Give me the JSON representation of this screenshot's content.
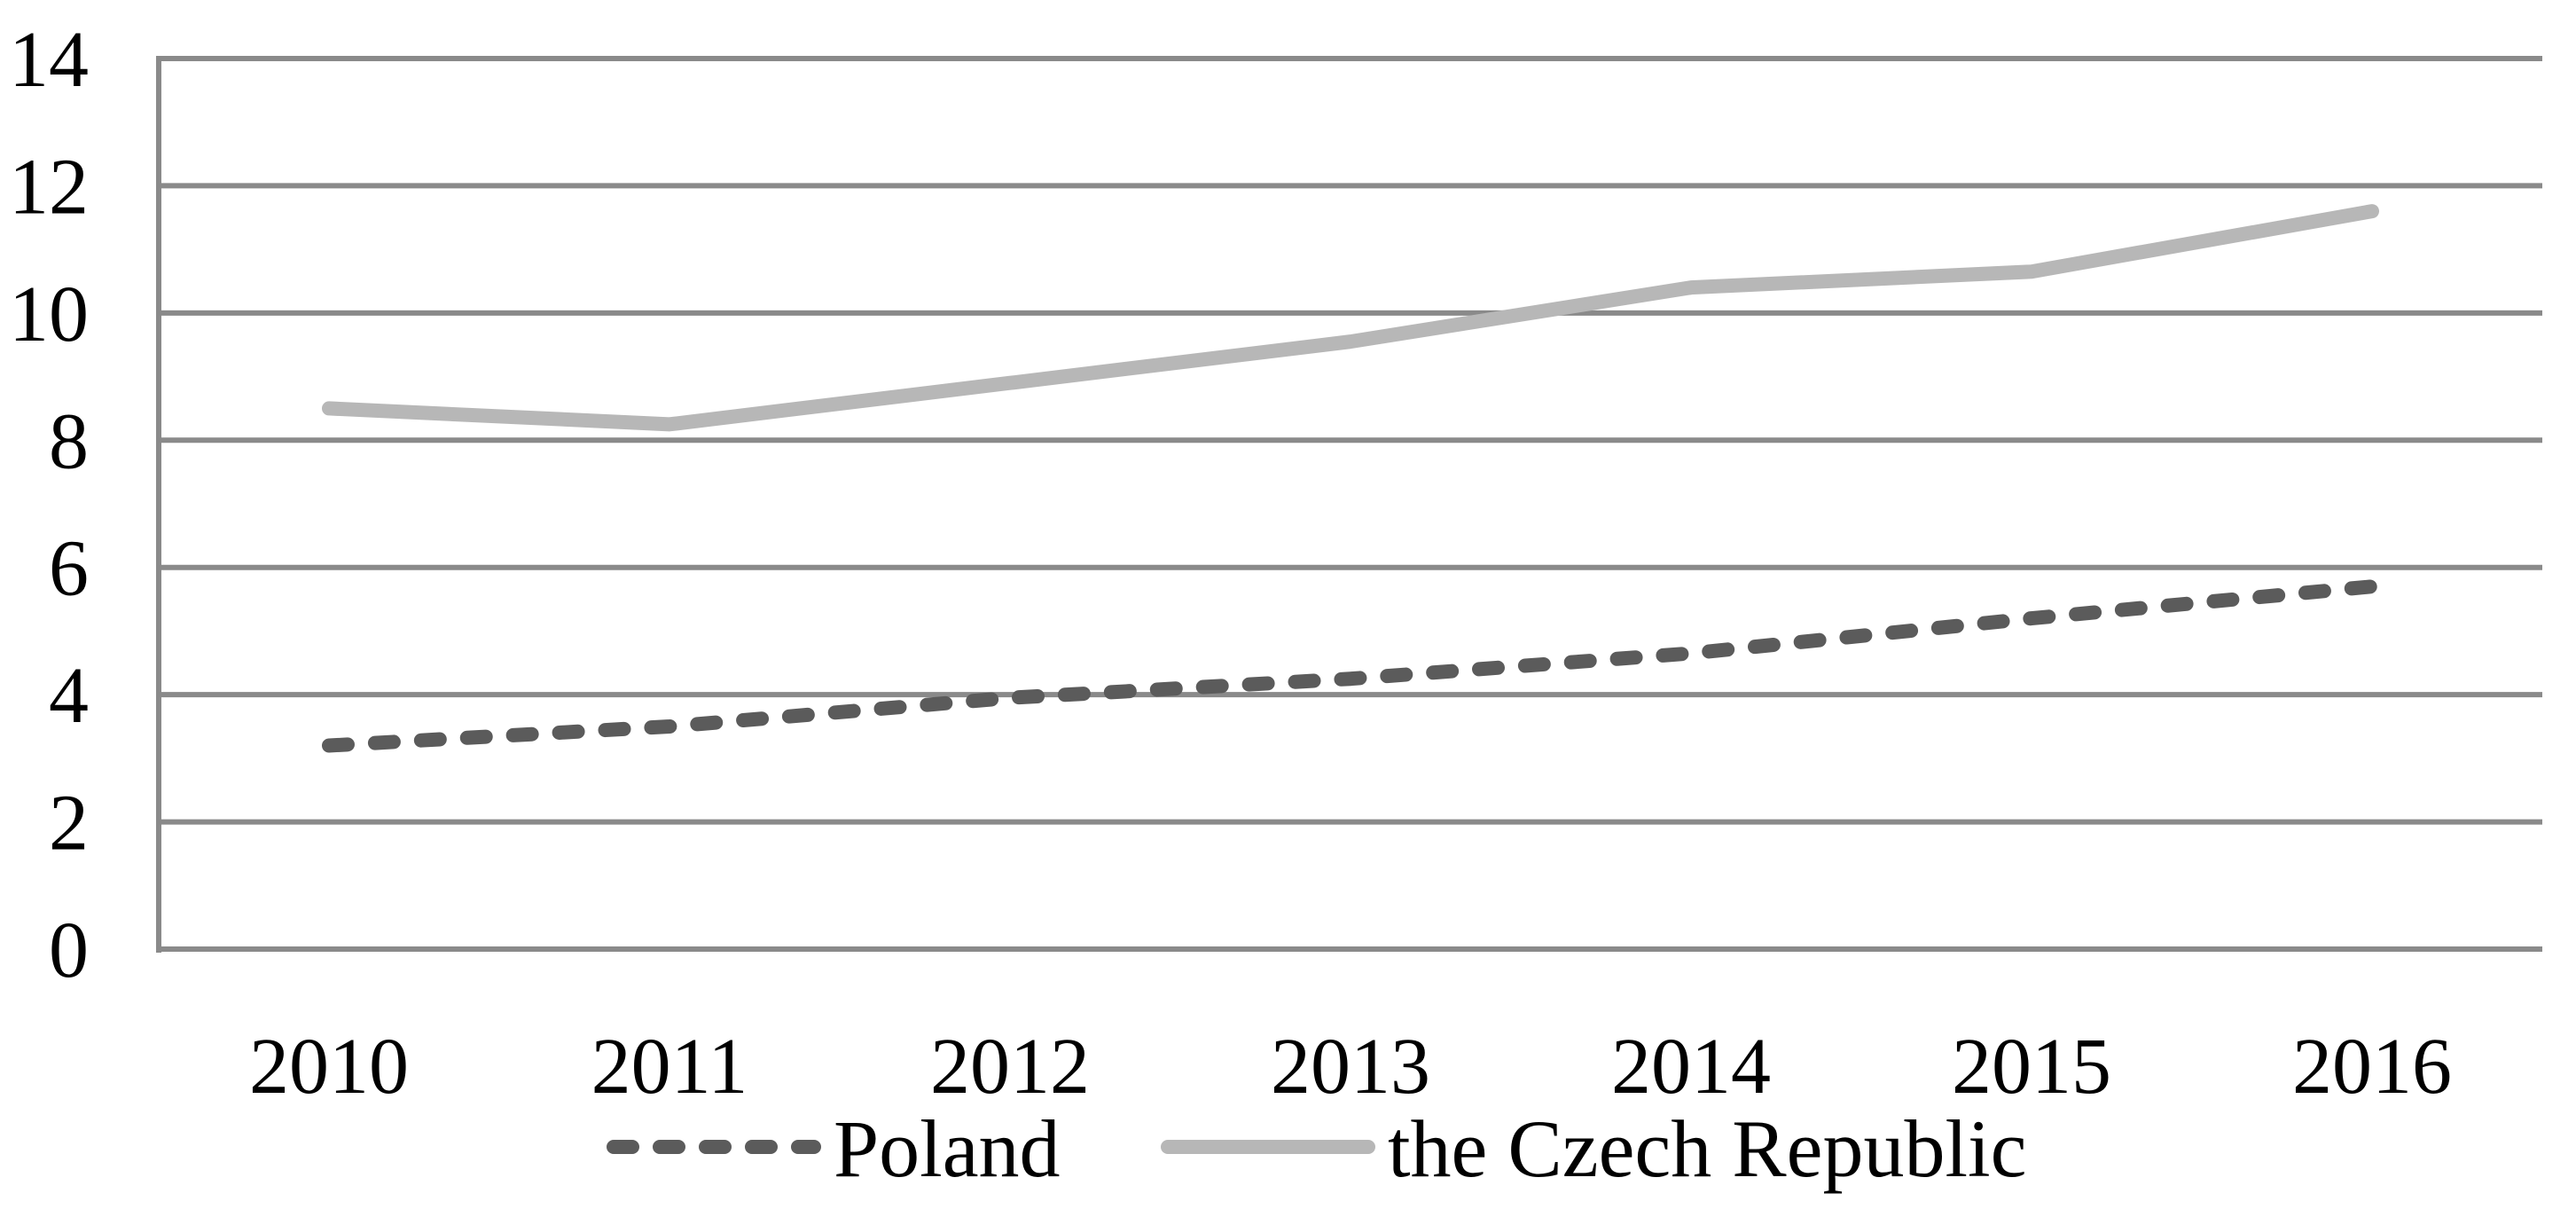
{
  "chart_data": {
    "type": "line",
    "title": "",
    "xlabel": "",
    "ylabel": "",
    "categories": [
      "2010",
      "2011",
      "2012",
      "2013",
      "2014",
      "2015",
      "2016"
    ],
    "series": [
      {
        "name": "Poland",
        "values": [
          3.2,
          3.5,
          3.95,
          4.25,
          4.65,
          5.2,
          5.7
        ],
        "color": "#5b5b5b",
        "line_style": "dashed"
      },
      {
        "name": "the Czech Republic",
        "values": [
          8.5,
          8.25,
          8.9,
          9.55,
          10.4,
          10.65,
          11.6
        ],
        "color": "#b7b7b7",
        "line_style": "solid"
      }
    ],
    "ylim": [
      0,
      14
    ],
    "ytick_step": 2,
    "yticks": [
      "0",
      "2",
      "4",
      "6",
      "8",
      "10",
      "12",
      "14"
    ],
    "grid": true,
    "legend_position": "bottom",
    "colors": {
      "gridline": "#8a8a8a",
      "axis": "#8a8a8a",
      "text": "#000000",
      "background": "#ffffff"
    }
  }
}
